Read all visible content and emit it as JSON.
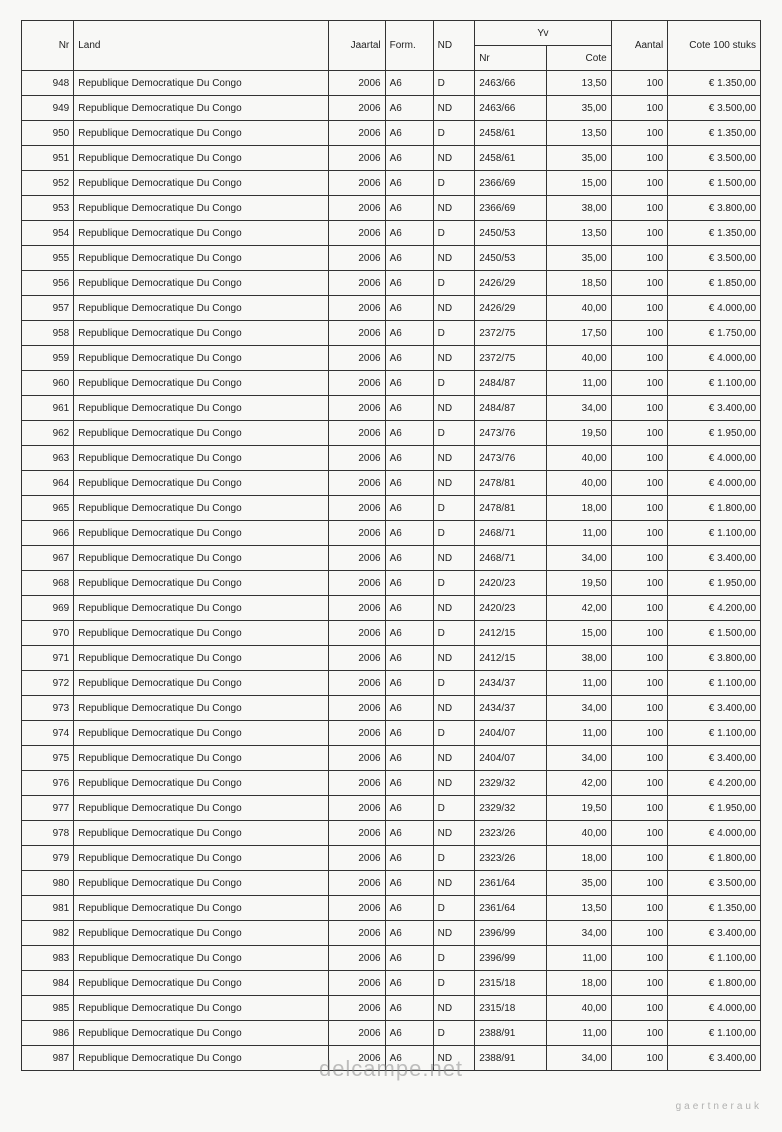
{
  "header": {
    "nr": "Nr",
    "land": "Land",
    "jaartal": "Jaartal",
    "form": "Form.",
    "nd": "ND",
    "yv": "Yv",
    "yvnr": "Nr",
    "cote": "Cote",
    "aantal": "Aantal",
    "cote100": "Cote 100 stuks"
  },
  "rows": [
    {
      "nr": "948",
      "land": "Republique Democratique Du Congo",
      "jaartal": "2006",
      "form": "A6",
      "nd": "D",
      "yvnr": "2463/66",
      "cote": "13,50",
      "aantal": "100",
      "cote100": "€ 1.350,00"
    },
    {
      "nr": "949",
      "land": "Republique Democratique Du Congo",
      "jaartal": "2006",
      "form": "A6",
      "nd": "ND",
      "yvnr": "2463/66",
      "cote": "35,00",
      "aantal": "100",
      "cote100": "€ 3.500,00"
    },
    {
      "nr": "950",
      "land": "Republique Democratique Du Congo",
      "jaartal": "2006",
      "form": "A6",
      "nd": "D",
      "yvnr": "2458/61",
      "cote": "13,50",
      "aantal": "100",
      "cote100": "€ 1.350,00"
    },
    {
      "nr": "951",
      "land": "Republique Democratique Du Congo",
      "jaartal": "2006",
      "form": "A6",
      "nd": "ND",
      "yvnr": "2458/61",
      "cote": "35,00",
      "aantal": "100",
      "cote100": "€ 3.500,00"
    },
    {
      "nr": "952",
      "land": "Republique Democratique Du Congo",
      "jaartal": "2006",
      "form": "A6",
      "nd": "D",
      "yvnr": "2366/69",
      "cote": "15,00",
      "aantal": "100",
      "cote100": "€ 1.500,00"
    },
    {
      "nr": "953",
      "land": "Republique Democratique Du Congo",
      "jaartal": "2006",
      "form": "A6",
      "nd": "ND",
      "yvnr": "2366/69",
      "cote": "38,00",
      "aantal": "100",
      "cote100": "€ 3.800,00"
    },
    {
      "nr": "954",
      "land": "Republique Democratique Du Congo",
      "jaartal": "2006",
      "form": "A6",
      "nd": "D",
      "yvnr": "2450/53",
      "cote": "13,50",
      "aantal": "100",
      "cote100": "€ 1.350,00"
    },
    {
      "nr": "955",
      "land": "Republique Democratique Du Congo",
      "jaartal": "2006",
      "form": "A6",
      "nd": "ND",
      "yvnr": "2450/53",
      "cote": "35,00",
      "aantal": "100",
      "cote100": "€ 3.500,00"
    },
    {
      "nr": "956",
      "land": "Republique Democratique Du Congo",
      "jaartal": "2006",
      "form": "A6",
      "nd": "D",
      "yvnr": "2426/29",
      "cote": "18,50",
      "aantal": "100",
      "cote100": "€ 1.850,00"
    },
    {
      "nr": "957",
      "land": "Republique Democratique Du Congo",
      "jaartal": "2006",
      "form": "A6",
      "nd": "ND",
      "yvnr": "2426/29",
      "cote": "40,00",
      "aantal": "100",
      "cote100": "€ 4.000,00"
    },
    {
      "nr": "958",
      "land": "Republique Democratique Du Congo",
      "jaartal": "2006",
      "form": "A6",
      "nd": "D",
      "yvnr": "2372/75",
      "cote": "17,50",
      "aantal": "100",
      "cote100": "€ 1.750,00"
    },
    {
      "nr": "959",
      "land": "Republique Democratique Du Congo",
      "jaartal": "2006",
      "form": "A6",
      "nd": "ND",
      "yvnr": "2372/75",
      "cote": "40,00",
      "aantal": "100",
      "cote100": "€ 4.000,00"
    },
    {
      "nr": "960",
      "land": "Republique Democratique Du Congo",
      "jaartal": "2006",
      "form": "A6",
      "nd": "D",
      "yvnr": "2484/87",
      "cote": "11,00",
      "aantal": "100",
      "cote100": "€ 1.100,00"
    },
    {
      "nr": "961",
      "land": "Republique Democratique Du Congo",
      "jaartal": "2006",
      "form": "A6",
      "nd": "ND",
      "yvnr": "2484/87",
      "cote": "34,00",
      "aantal": "100",
      "cote100": "€ 3.400,00"
    },
    {
      "nr": "962",
      "land": "Republique Democratique Du Congo",
      "jaartal": "2006",
      "form": "A6",
      "nd": "D",
      "yvnr": "2473/76",
      "cote": "19,50",
      "aantal": "100",
      "cote100": "€ 1.950,00"
    },
    {
      "nr": "963",
      "land": "Republique Democratique Du Congo",
      "jaartal": "2006",
      "form": "A6",
      "nd": "ND",
      "yvnr": "2473/76",
      "cote": "40,00",
      "aantal": "100",
      "cote100": "€ 4.000,00"
    },
    {
      "nr": "964",
      "land": "Republique Democratique Du Congo",
      "jaartal": "2006",
      "form": "A6",
      "nd": "ND",
      "yvnr": "2478/81",
      "cote": "40,00",
      "aantal": "100",
      "cote100": "€ 4.000,00"
    },
    {
      "nr": "965",
      "land": "Republique Democratique Du Congo",
      "jaartal": "2006",
      "form": "A6",
      "nd": "D",
      "yvnr": "2478/81",
      "cote": "18,00",
      "aantal": "100",
      "cote100": "€ 1.800,00"
    },
    {
      "nr": "966",
      "land": "Republique Democratique Du Congo",
      "jaartal": "2006",
      "form": "A6",
      "nd": "D",
      "yvnr": "2468/71",
      "cote": "11,00",
      "aantal": "100",
      "cote100": "€ 1.100,00"
    },
    {
      "nr": "967",
      "land": "Republique Democratique Du Congo",
      "jaartal": "2006",
      "form": "A6",
      "nd": "ND",
      "yvnr": "2468/71",
      "cote": "34,00",
      "aantal": "100",
      "cote100": "€ 3.400,00"
    },
    {
      "nr": "968",
      "land": "Republique Democratique Du Congo",
      "jaartal": "2006",
      "form": "A6",
      "nd": "D",
      "yvnr": "2420/23",
      "cote": "19,50",
      "aantal": "100",
      "cote100": "€ 1.950,00"
    },
    {
      "nr": "969",
      "land": "Republique Democratique Du Congo",
      "jaartal": "2006",
      "form": "A6",
      "nd": "ND",
      "yvnr": "2420/23",
      "cote": "42,00",
      "aantal": "100",
      "cote100": "€ 4.200,00"
    },
    {
      "nr": "970",
      "land": "Republique Democratique Du Congo",
      "jaartal": "2006",
      "form": "A6",
      "nd": "D",
      "yvnr": "2412/15",
      "cote": "15,00",
      "aantal": "100",
      "cote100": "€ 1.500,00"
    },
    {
      "nr": "971",
      "land": "Republique Democratique Du Congo",
      "jaartal": "2006",
      "form": "A6",
      "nd": "ND",
      "yvnr": "2412/15",
      "cote": "38,00",
      "aantal": "100",
      "cote100": "€ 3.800,00"
    },
    {
      "nr": "972",
      "land": "Republique Democratique Du Congo",
      "jaartal": "2006",
      "form": "A6",
      "nd": "D",
      "yvnr": "2434/37",
      "cote": "11,00",
      "aantal": "100",
      "cote100": "€ 1.100,00"
    },
    {
      "nr": "973",
      "land": "Republique Democratique Du Congo",
      "jaartal": "2006",
      "form": "A6",
      "nd": "ND",
      "yvnr": "2434/37",
      "cote": "34,00",
      "aantal": "100",
      "cote100": "€ 3.400,00"
    },
    {
      "nr": "974",
      "land": "Republique Democratique Du Congo",
      "jaartal": "2006",
      "form": "A6",
      "nd": "D",
      "yvnr": "2404/07",
      "cote": "11,00",
      "aantal": "100",
      "cote100": "€ 1.100,00"
    },
    {
      "nr": "975",
      "land": "Republique Democratique Du Congo",
      "jaartal": "2006",
      "form": "A6",
      "nd": "ND",
      "yvnr": "2404/07",
      "cote": "34,00",
      "aantal": "100",
      "cote100": "€ 3.400,00"
    },
    {
      "nr": "976",
      "land": "Republique Democratique Du Congo",
      "jaartal": "2006",
      "form": "A6",
      "nd": "ND",
      "yvnr": "2329/32",
      "cote": "42,00",
      "aantal": "100",
      "cote100": "€ 4.200,00"
    },
    {
      "nr": "977",
      "land": "Republique Democratique Du Congo",
      "jaartal": "2006",
      "form": "A6",
      "nd": "D",
      "yvnr": "2329/32",
      "cote": "19,50",
      "aantal": "100",
      "cote100": "€ 1.950,00"
    },
    {
      "nr": "978",
      "land": "Republique Democratique Du Congo",
      "jaartal": "2006",
      "form": "A6",
      "nd": "ND",
      "yvnr": "2323/26",
      "cote": "40,00",
      "aantal": "100",
      "cote100": "€ 4.000,00"
    },
    {
      "nr": "979",
      "land": "Republique Democratique Du Congo",
      "jaartal": "2006",
      "form": "A6",
      "nd": "D",
      "yvnr": "2323/26",
      "cote": "18,00",
      "aantal": "100",
      "cote100": "€ 1.800,00"
    },
    {
      "nr": "980",
      "land": "Republique Democratique Du Congo",
      "jaartal": "2006",
      "form": "A6",
      "nd": "ND",
      "yvnr": "2361/64",
      "cote": "35,00",
      "aantal": "100",
      "cote100": "€ 3.500,00"
    },
    {
      "nr": "981",
      "land": "Republique Democratique Du Congo",
      "jaartal": "2006",
      "form": "A6",
      "nd": "D",
      "yvnr": "2361/64",
      "cote": "13,50",
      "aantal": "100",
      "cote100": "€ 1.350,00"
    },
    {
      "nr": "982",
      "land": "Republique Democratique Du Congo",
      "jaartal": "2006",
      "form": "A6",
      "nd": "ND",
      "yvnr": "2396/99",
      "cote": "34,00",
      "aantal": "100",
      "cote100": "€ 3.400,00"
    },
    {
      "nr": "983",
      "land": "Republique Democratique Du Congo",
      "jaartal": "2006",
      "form": "A6",
      "nd": "D",
      "yvnr": "2396/99",
      "cote": "11,00",
      "aantal": "100",
      "cote100": "€ 1.100,00"
    },
    {
      "nr": "984",
      "land": "Republique Democratique Du Congo",
      "jaartal": "2006",
      "form": "A6",
      "nd": "D",
      "yvnr": "2315/18",
      "cote": "18,00",
      "aantal": "100",
      "cote100": "€ 1.800,00"
    },
    {
      "nr": "985",
      "land": "Republique Democratique Du Congo",
      "jaartal": "2006",
      "form": "A6",
      "nd": "ND",
      "yvnr": "2315/18",
      "cote": "40,00",
      "aantal": "100",
      "cote100": "€ 4.000,00"
    },
    {
      "nr": "986",
      "land": "Republique Democratique Du Congo",
      "jaartal": "2006",
      "form": "A6",
      "nd": "D",
      "yvnr": "2388/91",
      "cote": "11,00",
      "aantal": "100",
      "cote100": "€ 1.100,00"
    },
    {
      "nr": "987",
      "land": "Republique Democratique Du Congo",
      "jaartal": "2006",
      "form": "A6",
      "nd": "ND",
      "yvnr": "2388/91",
      "cote": "34,00",
      "aantal": "100",
      "cote100": "€ 3.400,00"
    }
  ],
  "watermark": "delcampe.net",
  "watermark2": "gaertnerauk"
}
